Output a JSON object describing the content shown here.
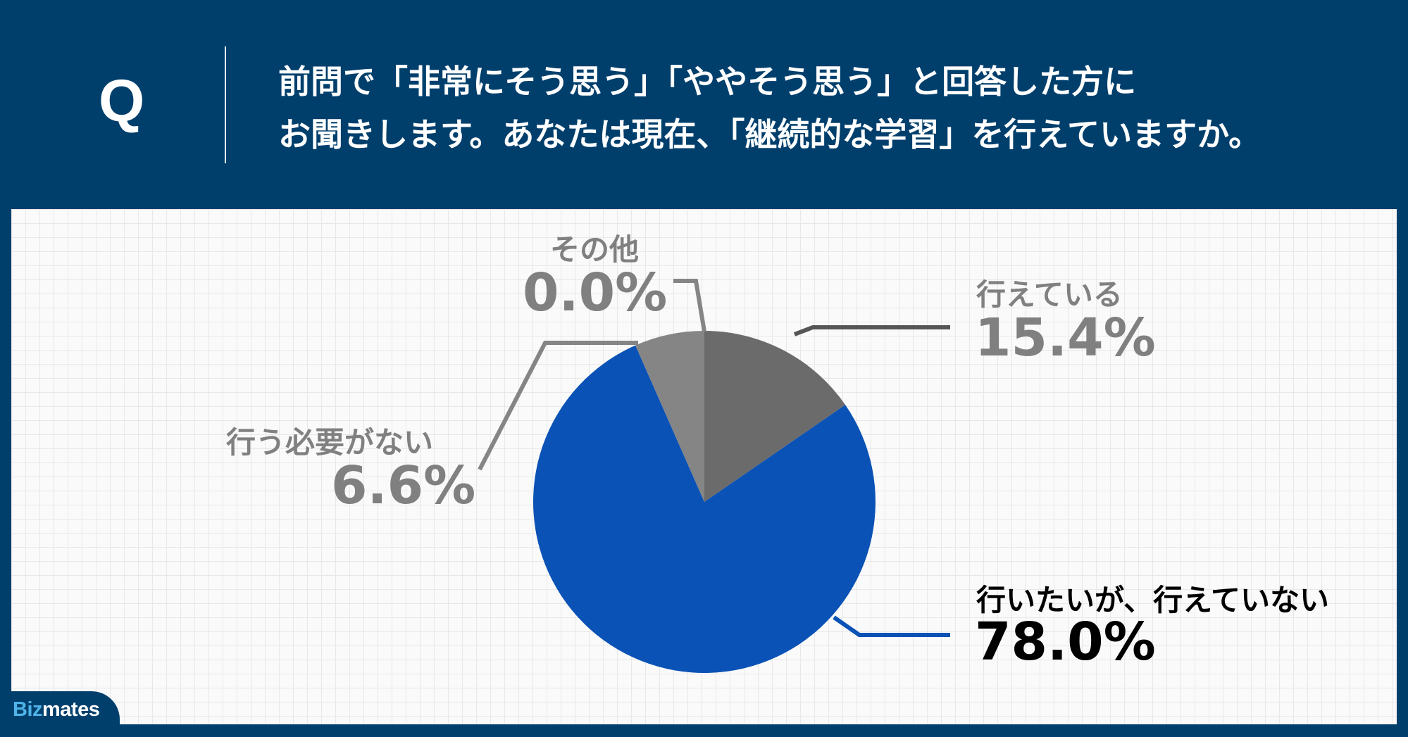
{
  "question": {
    "marker": "Q",
    "line1": "前問で「非常にそう思う」「ややそう思う」と回答した方に",
    "line2": "お聞きします。あなたは現在、「継続的な学習」を行えていますか。"
  },
  "chart_data": {
    "type": "pie",
    "start_angle_deg": 0,
    "direction": "clockwise",
    "slices": [
      {
        "label": "行えている",
        "value": 15.4,
        "value_text": "15.4%",
        "color": "#6b6b6b"
      },
      {
        "label": "行いたいが、行えていない",
        "value": 78.0,
        "value_text": "78.0%",
        "color": "#0a52b5"
      },
      {
        "label": "行う必要がない",
        "value": 6.6,
        "value_text": "6.6%",
        "color": "#858585"
      },
      {
        "label": "その他",
        "value": 0.0,
        "value_text": "0.0%",
        "color": "#858585"
      }
    ]
  },
  "brand": {
    "biz": "Biz",
    "mates": "mates"
  },
  "colors": {
    "header_bg": "#003f6c",
    "label_gray": "#808080",
    "label_dark": "#000000"
  }
}
